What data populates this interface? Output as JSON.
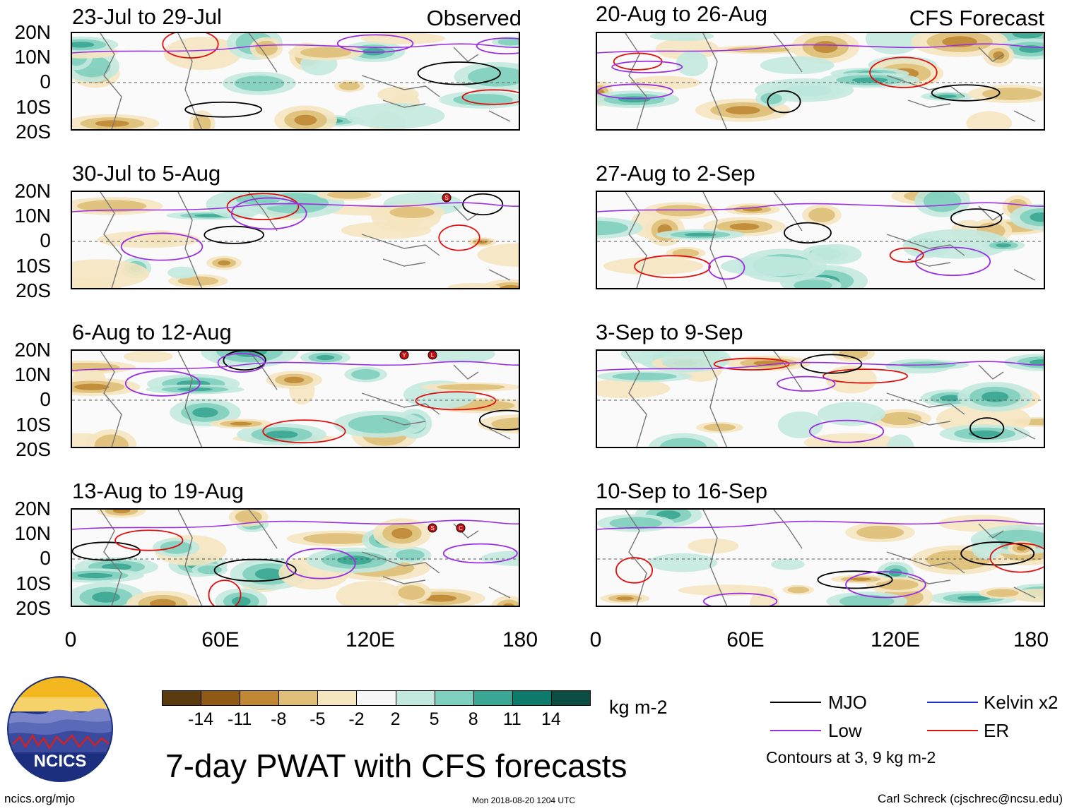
{
  "figure": {
    "title": "7-day PWAT with CFS forecasts",
    "units": "kg m-2",
    "footer_url": "ncics.org/mjo",
    "footer_timestamp": "Mon 2018-08-20 1204 UTC",
    "footer_author": "Carl Schreck (cjschrec@ncsu.edu)",
    "logo_text": "NCICS"
  },
  "columns": {
    "left_label": "Observed",
    "right_label": "CFS Forecast"
  },
  "panels": [
    {
      "title": "23-Jul to 29-Jul",
      "column": "observed"
    },
    {
      "title": "20-Aug to 26-Aug",
      "column": "forecast"
    },
    {
      "title": "30-Jul to 5-Aug",
      "column": "observed"
    },
    {
      "title": "27-Aug to 2-Sep",
      "column": "forecast"
    },
    {
      "title": "6-Aug to 12-Aug",
      "column": "observed"
    },
    {
      "title": "3-Sep to 9-Sep",
      "column": "forecast"
    },
    {
      "title": "13-Aug to 19-Aug",
      "column": "observed"
    },
    {
      "title": "10-Sep to 16-Sep",
      "column": "forecast"
    }
  ],
  "axes": {
    "y_ticks": [
      "20N",
      "10N",
      "0",
      "10S",
      "20S"
    ],
    "x_ticks": [
      "0",
      "60E",
      "120E",
      "180"
    ]
  },
  "colorbar": {
    "levels": [
      "-14",
      "-11",
      "-8",
      "-5",
      "-2",
      "2",
      "5",
      "8",
      "11",
      "14"
    ],
    "colors": [
      "#5a3a0f",
      "#8e5a16",
      "#c08834",
      "#dfbf78",
      "#f5e6c0",
      "#f7f7f7",
      "#c3e9df",
      "#7fcfbe",
      "#3aa694",
      "#0d7a6b",
      "#0b4d43"
    ]
  },
  "legend": {
    "items": [
      {
        "label": "MJO",
        "color": "#000000"
      },
      {
        "label": "Kelvin x2",
        "color": "#1f2fd0"
      },
      {
        "label": "Low",
        "color": "#9b30e0"
      },
      {
        "label": "ER",
        "color": "#e01010"
      }
    ],
    "note": "Contours at 3, 9 kg m-2"
  },
  "storm_markers": [
    {
      "panel": 2,
      "letter": "S"
    },
    {
      "panel": 4,
      "letter": "Y"
    },
    {
      "panel": 4,
      "letter": "L"
    },
    {
      "panel": 6,
      "letter": "S"
    },
    {
      "panel": 6,
      "letter": "C"
    }
  ]
}
